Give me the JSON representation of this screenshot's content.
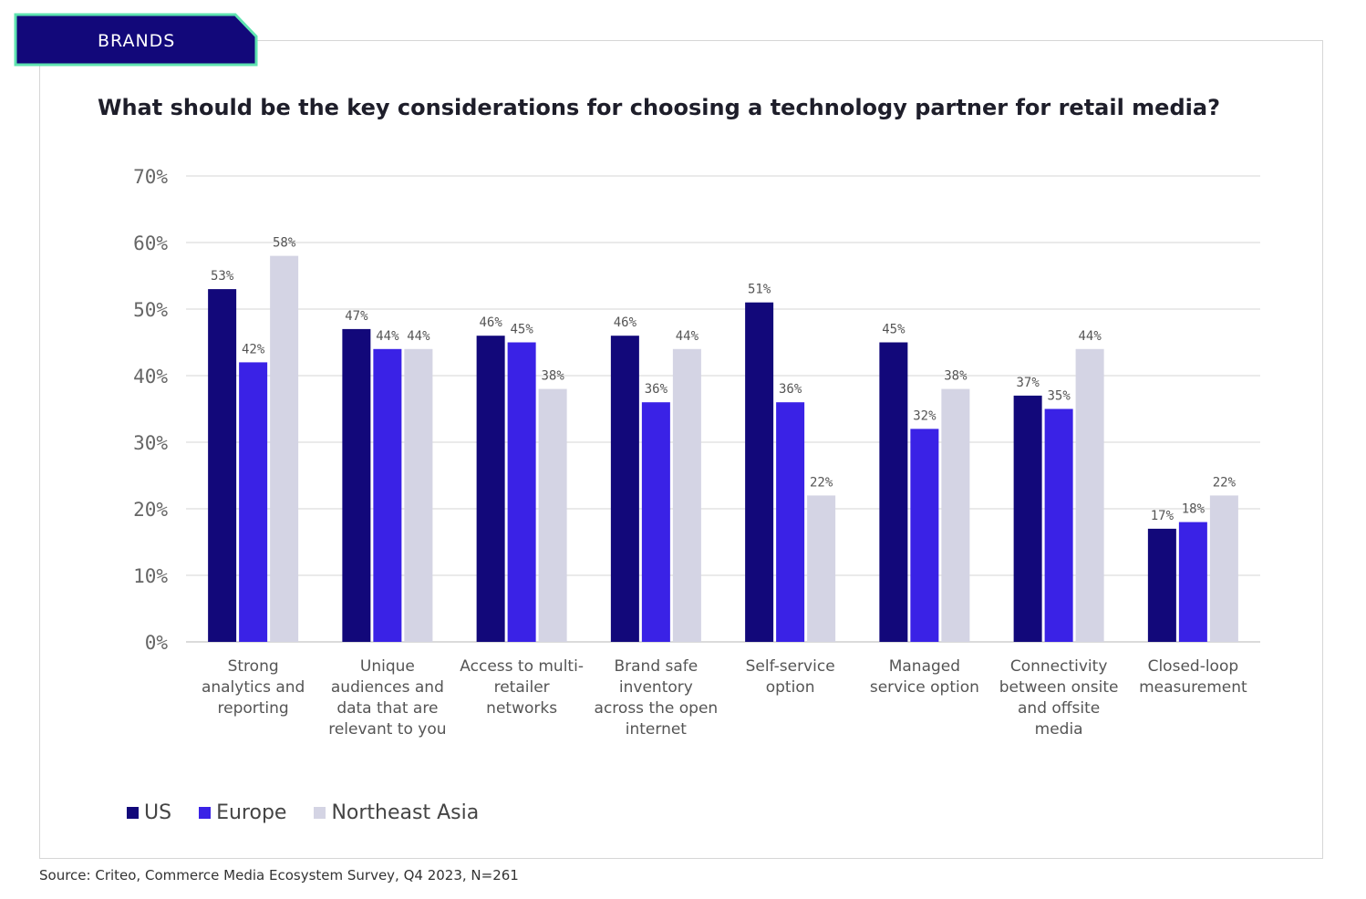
{
  "header": {
    "tab_label": "BRANDS",
    "title": "What should be the key considerations for choosing a technology partner for retail media?"
  },
  "source": "Source: Criteo, Commerce Media Ecosystem Survey, Q4 2023, N=261",
  "colors": {
    "us": "#12087a",
    "europe": "#3a22e6",
    "northeast_asia": "#d4d4e4",
    "tab_fill": "#12087a",
    "tab_border": "#5fe3b0",
    "grid": "#e3e3e3",
    "tick_text": "#666666",
    "label_text": "#555555"
  },
  "legend": [
    {
      "name": "US",
      "color": "#12087a"
    },
    {
      "name": "Europe",
      "color": "#3a22e6"
    },
    {
      "name": "Northeast Asia",
      "color": "#d4d4e4"
    }
  ],
  "chart_data": {
    "type": "bar",
    "title": "What should be the key considerations for choosing a technology partner for retail media?",
    "xlabel": "",
    "ylabel": "",
    "ylim": [
      0,
      70
    ],
    "yticks": [
      "0%",
      "10%",
      "20%",
      "30%",
      "40%",
      "50%",
      "60%",
      "70%"
    ],
    "grid": true,
    "legend_position": "bottom-left",
    "categories": [
      [
        "Strong",
        "analytics and",
        "reporting"
      ],
      [
        "Unique",
        "audiences and",
        "data that are",
        "relevant to you"
      ],
      [
        "Access to multi-",
        "retailer",
        "networks"
      ],
      [
        "Brand safe",
        "inventory",
        "across the open",
        "internet"
      ],
      [
        "Self-service",
        "option"
      ],
      [
        "Managed",
        "service option"
      ],
      [
        "Connectivity",
        "between onsite",
        "and offsite",
        "media"
      ],
      [
        "Closed-loop",
        "measurement"
      ]
    ],
    "series": [
      {
        "name": "US",
        "values": [
          53,
          47,
          46,
          46,
          51,
          45,
          37,
          17
        ]
      },
      {
        "name": "Europe",
        "values": [
          42,
          44,
          45,
          36,
          36,
          32,
          35,
          18
        ]
      },
      {
        "name": "Northeast Asia",
        "values": [
          58,
          44,
          38,
          44,
          22,
          38,
          44,
          22
        ]
      }
    ]
  }
}
